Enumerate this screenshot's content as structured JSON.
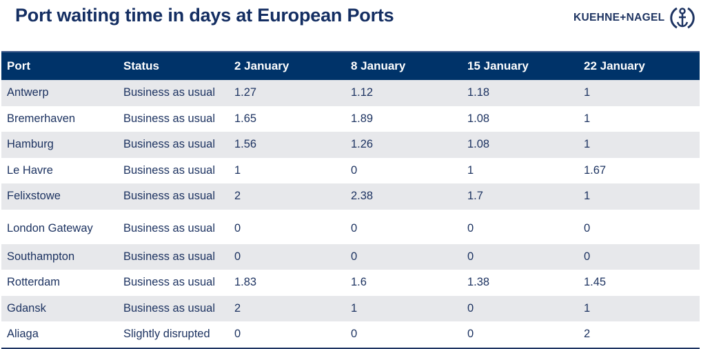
{
  "title": "Port waiting time in days at European Ports",
  "logo": {
    "text": "KUEHNE+NAGEL",
    "icon": "anchor-icon"
  },
  "colors": {
    "header_bg": "#003369",
    "text": "#1d3361",
    "alt_row": "#e7e8eb"
  },
  "table": {
    "headers": [
      "Port",
      "Status",
      "2 January",
      "8 January",
      "15 January",
      "22 January"
    ],
    "rows": [
      [
        "Antwerp",
        "Business as usual",
        "1.27",
        "1.12",
        "1.18",
        "1"
      ],
      [
        "Bremerhaven",
        "Business as usual",
        "1.65",
        "1.89",
        "1.08",
        "1"
      ],
      [
        "Hamburg",
        "Business as usual",
        "1.56",
        "1.26",
        "1.08",
        "1"
      ],
      [
        "Le Havre",
        "Business as usual",
        "1",
        "0",
        "1",
        "1.67"
      ],
      [
        "Felixstowe",
        "Business as usual",
        "2",
        "2.38",
        "1.7",
        "1"
      ],
      [
        "London Gateway",
        "Business as usual",
        "0",
        "0",
        "0",
        "0"
      ],
      [
        "Southampton",
        "Business as usual",
        "0",
        "0",
        "0",
        "0"
      ],
      [
        "Rotterdam",
        "Business as usual",
        "1.83",
        "1.6",
        "1.38",
        "1.45"
      ],
      [
        "Gdansk",
        "Business as usual",
        "2",
        "1",
        "0",
        "1"
      ],
      [
        "Aliaga",
        "Slightly disrupted",
        "0",
        "0",
        "0",
        "2"
      ]
    ]
  }
}
